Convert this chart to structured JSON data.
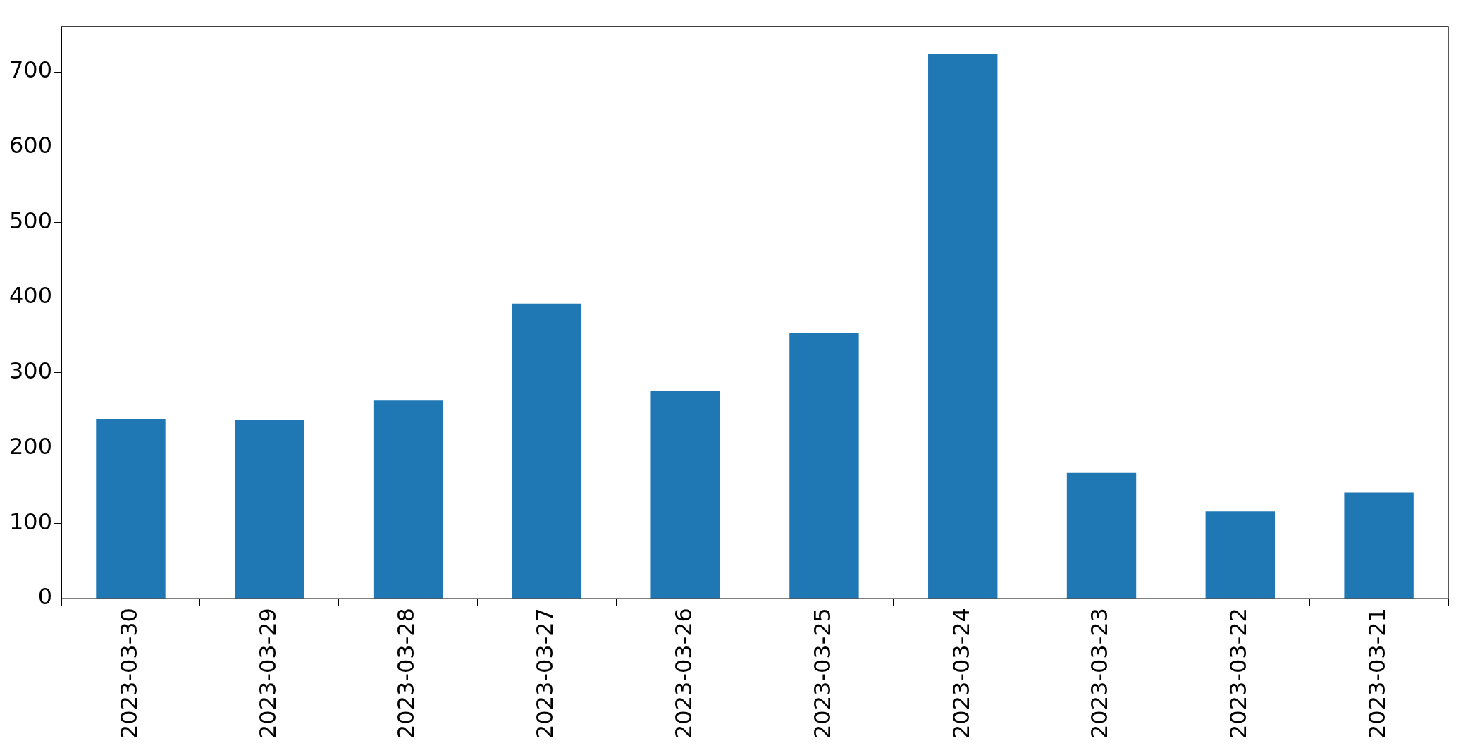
{
  "chart_data": {
    "type": "bar",
    "categories": [
      "2023-03-30",
      "2023-03-29",
      "2023-03-28",
      "2023-03-27",
      "2023-03-26",
      "2023-03-25",
      "2023-03-24",
      "2023-03-23",
      "2023-03-22",
      "2023-03-21"
    ],
    "values": [
      238,
      237,
      263,
      392,
      276,
      353,
      724,
      167,
      116,
      141
    ],
    "color": "#1f77b4",
    "ylim": [
      0,
      760
    ],
    "yticks": [
      0,
      100,
      200,
      300,
      400,
      500,
      600,
      700
    ],
    "grid": false,
    "legend": false
  }
}
